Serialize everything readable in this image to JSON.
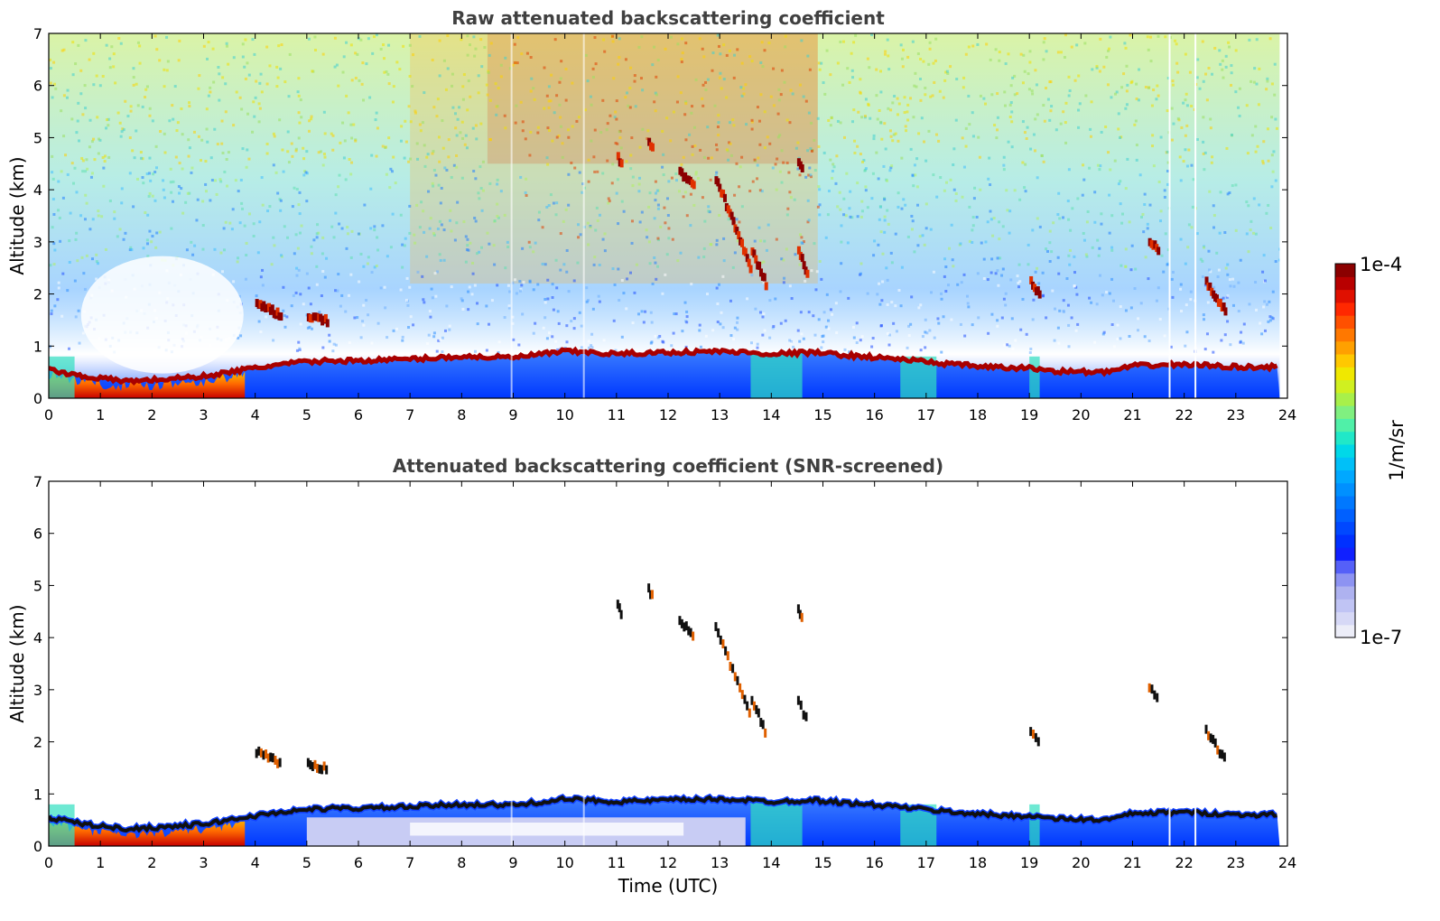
{
  "chart_data": [
    {
      "type": "heatmap",
      "title": "Raw attenuated backscattering coefficient",
      "xlabel": "",
      "ylabel": "Altitude (km)",
      "xlim": [
        0,
        24
      ],
      "ylim": [
        0,
        7
      ],
      "x_ticks": [
        "0",
        "1",
        "2",
        "3",
        "4",
        "5",
        "6",
        "7",
        "8",
        "9",
        "10",
        "11",
        "12",
        "13",
        "14",
        "15",
        "16",
        "17",
        "18",
        "19",
        "20",
        "21",
        "22",
        "23",
        "24"
      ],
      "y_ticks": [
        "0",
        "1",
        "2",
        "3",
        "4",
        "5",
        "6",
        "7"
      ],
      "data_end_time": 23.85,
      "boundary_layer_top_km": [
        [
          0,
          0.55
        ],
        [
          0.5,
          0.45
        ],
        [
          1,
          0.38
        ],
        [
          1.5,
          0.33
        ],
        [
          2,
          0.35
        ],
        [
          3,
          0.42
        ],
        [
          3.8,
          0.55
        ],
        [
          4.5,
          0.65
        ],
        [
          5,
          0.7
        ],
        [
          5.5,
          0.72
        ],
        [
          6,
          0.72
        ],
        [
          7,
          0.75
        ],
        [
          8,
          0.8
        ],
        [
          9,
          0.78
        ],
        [
          10,
          0.9
        ],
        [
          11,
          0.85
        ],
        [
          12,
          0.88
        ],
        [
          13,
          0.9
        ],
        [
          13.5,
          0.88
        ],
        [
          14,
          0.85
        ],
        [
          14.8,
          0.88
        ],
        [
          15.5,
          0.82
        ],
        [
          16.5,
          0.75
        ],
        [
          17.5,
          0.65
        ],
        [
          18.5,
          0.58
        ],
        [
          19,
          0.58
        ],
        [
          19.5,
          0.52
        ],
        [
          20.5,
          0.5
        ],
        [
          21,
          0.62
        ],
        [
          22,
          0.65
        ],
        [
          23,
          0.6
        ],
        [
          23.85,
          0.6
        ]
      ],
      "cloud_features_km": [
        [
          4.0,
          4.5,
          1.65,
          1.9
        ],
        [
          5.0,
          5.4,
          1.55,
          1.65
        ],
        [
          11.0,
          11.1,
          4.5,
          4.7
        ],
        [
          11.6,
          11.7,
          4.85,
          5.0
        ],
        [
          12.2,
          12.5,
          4.1,
          4.4
        ],
        [
          12.9,
          13.6,
          2.5,
          4.3
        ],
        [
          13.6,
          13.9,
          2.2,
          2.9
        ],
        [
          14.5,
          14.6,
          4.45,
          4.6
        ],
        [
          14.5,
          14.7,
          2.4,
          2.9
        ],
        [
          19.0,
          19.2,
          2.0,
          2.3
        ],
        [
          21.3,
          21.5,
          2.9,
          3.1
        ],
        [
          22.4,
          22.8,
          1.7,
          2.3
        ]
      ],
      "colorbar": {
        "label": "1/m/sr",
        "min_label": "1e-7",
        "max_label": "1e-4",
        "scale": "log",
        "colormap": "jet"
      }
    },
    {
      "type": "heatmap",
      "title": "Attenuated backscattering coefficient (SNR-screened)",
      "xlabel": "Time (UTC)",
      "ylabel": "Altitude (km)",
      "xlim": [
        0,
        24
      ],
      "ylim": [
        0,
        7
      ],
      "x_ticks": [
        "0",
        "1",
        "2",
        "3",
        "4",
        "5",
        "6",
        "7",
        "8",
        "9",
        "10",
        "11",
        "12",
        "13",
        "14",
        "15",
        "16",
        "17",
        "18",
        "19",
        "20",
        "21",
        "22",
        "23",
        "24"
      ],
      "y_ticks": [
        "0",
        "1",
        "2",
        "3",
        "4",
        "5",
        "6",
        "7"
      ]
    }
  ]
}
